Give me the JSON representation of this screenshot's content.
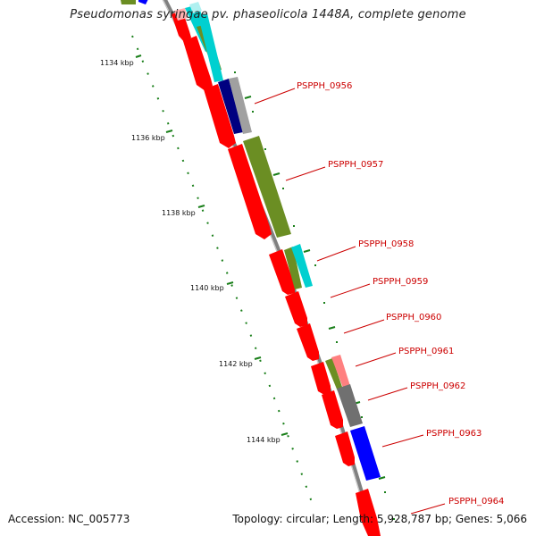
{
  "title": "Pseudomonas syringae pv. phaseolicola 1448A, complete genome",
  "accession": "Accession: NC_005773",
  "topology": "Topology: circular; Length: 5,928,787 bp; Genes: 5,066",
  "kbp_labels": [
    "1134 kbp",
    "1136 kbp",
    "1138 kbp",
    "1140 kbp",
    "1142 kbp",
    "1144 kbp"
  ],
  "gene_labels": [
    "PSPPH_0956",
    "PSPPH_0957",
    "PSPPH_0958",
    "PSPPH_0959",
    "PSPPH_0960",
    "PSPPH_0961",
    "PSPPH_0962",
    "PSPPH_0963",
    "PSPPH_0964"
  ],
  "colors": {
    "cds": "#ff0000",
    "backbone": "#808080",
    "tick": "#1a7f1a",
    "label": "#cc0000",
    "olive": "#6b8e23",
    "cyan": "#00d0d0",
    "navy": "#000080",
    "gray": "#a0a0a0",
    "blue": "#0000ff",
    "pink": "#ff8080",
    "darkgray": "#707070"
  }
}
